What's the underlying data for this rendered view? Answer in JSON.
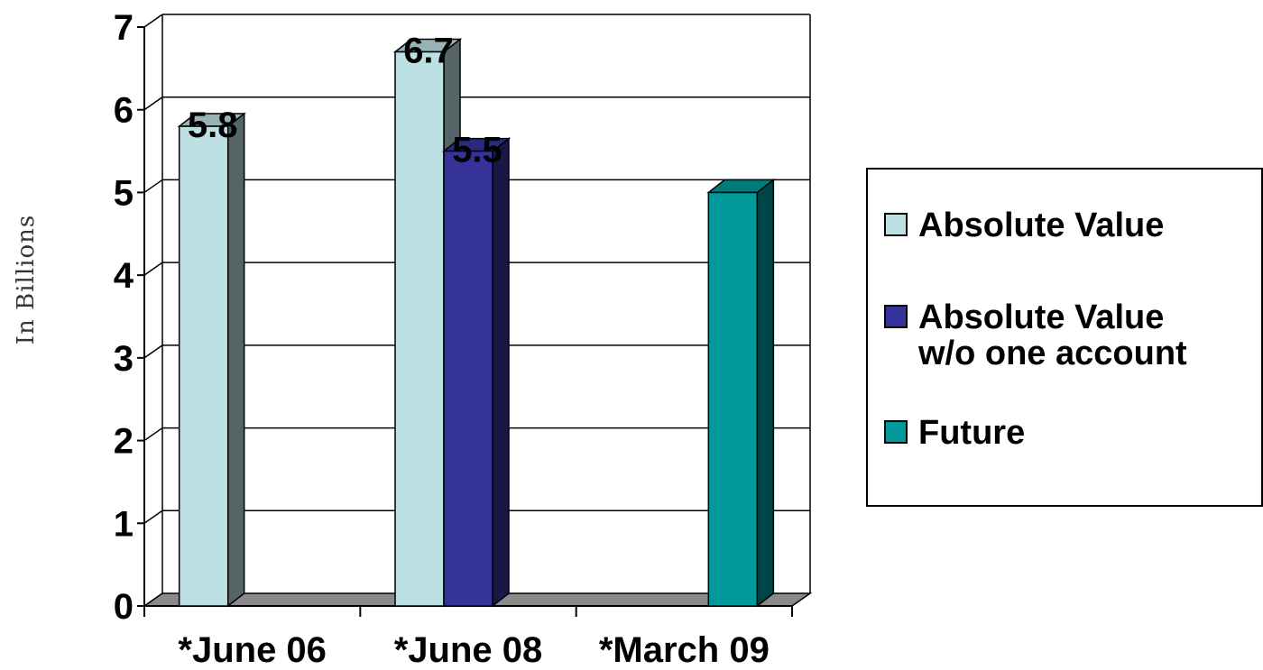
{
  "chart_data": {
    "type": "bar",
    "categories": [
      "*June 06",
      "*June 08",
      "*March 09"
    ],
    "ylabel": "In Billions",
    "xlabel": "",
    "ylim": [
      0,
      7
    ],
    "yticks": [
      "0",
      "1",
      "2",
      "3",
      "4",
      "5",
      "6",
      "7"
    ],
    "grid": true,
    "legend_position": "right",
    "series": [
      {
        "name": "Absolute Value",
        "color": "#bde0e4",
        "values": [
          5.8,
          6.7,
          null
        ],
        "labels": [
          "5.8",
          "6.7",
          ""
        ]
      },
      {
        "name": "Absolute Value\nw/o one account",
        "color": "#35339a",
        "values": [
          null,
          5.5,
          null
        ],
        "labels": [
          "",
          "5.5",
          ""
        ]
      },
      {
        "name": "Future",
        "color": "#009a9a",
        "values": [
          null,
          null,
          5.0
        ],
        "labels": [
          "",
          "",
          ""
        ]
      }
    ]
  }
}
